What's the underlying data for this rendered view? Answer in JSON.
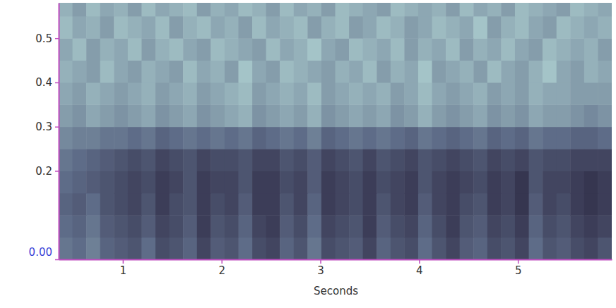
{
  "chart_data": {
    "type": "heatmap",
    "x_label": "Seconds",
    "xlim": [
      0.35,
      5.95
    ],
    "xticks": [
      1,
      2,
      3,
      4,
      5
    ],
    "ylim": [
      0,
      0.58
    ],
    "yticks": [
      {
        "value": 0,
        "label": "0.00"
      },
      0.2,
      0.3,
      0.4,
      0.5
    ],
    "grid": false,
    "cells": {
      "x_edges": [
        0.35,
        0.49,
        0.63,
        0.77,
        0.91,
        1.05,
        1.19,
        1.33,
        1.47,
        1.61,
        1.75,
        1.89,
        2.03,
        2.17,
        2.31,
        2.45,
        2.59,
        2.73,
        2.87,
        3.01,
        3.15,
        3.29,
        3.43,
        3.57,
        3.71,
        3.85,
        3.99,
        4.13,
        4.27,
        4.41,
        4.55,
        4.69,
        4.83,
        4.97,
        5.11,
        5.25,
        5.39,
        5.53,
        5.67,
        5.81,
        5.95
      ],
      "y_edges": [
        0,
        0.05,
        0.1,
        0.15,
        0.2,
        0.25,
        0.3,
        0.35,
        0.4,
        0.45,
        0.5,
        0.55,
        0.6
      ],
      "zlim": [
        0,
        1
      ],
      "values": [
        [
          0.5,
          0.45,
          0.55,
          0.4,
          0.35,
          0.3,
          0.45,
          0.25,
          0.3,
          0.4,
          0.2,
          0.35,
          0.3,
          0.45,
          0.25,
          0.2,
          0.4,
          0.3,
          0.5,
          0.25,
          0.3,
          0.35,
          0.2,
          0.4,
          0.3,
          0.25,
          0.45,
          0.3,
          0.2,
          0.35,
          0.4,
          0.25,
          0.3,
          0.2,
          0.45,
          0.3,
          0.35,
          0.25,
          0.2,
          0.3
        ],
        [
          0.45,
          0.4,
          0.5,
          0.35,
          0.3,
          0.25,
          0.35,
          0.2,
          0.25,
          0.35,
          0.15,
          0.3,
          0.25,
          0.4,
          0.2,
          0.15,
          0.35,
          0.25,
          0.45,
          0.2,
          0.25,
          0.3,
          0.15,
          0.35,
          0.25,
          0.2,
          0.4,
          0.25,
          0.15,
          0.3,
          0.35,
          0.2,
          0.25,
          0.15,
          0.4,
          0.25,
          0.3,
          0.2,
          0.15,
          0.2
        ],
        [
          0.4,
          0.35,
          0.45,
          0.3,
          0.25,
          0.2,
          0.3,
          0.15,
          0.25,
          0.3,
          0.15,
          0.25,
          0.2,
          0.35,
          0.15,
          0.15,
          0.3,
          0.2,
          0.4,
          0.15,
          0.2,
          0.25,
          0.15,
          0.3,
          0.2,
          0.15,
          0.35,
          0.2,
          0.15,
          0.25,
          0.3,
          0.15,
          0.2,
          0.1,
          0.35,
          0.2,
          0.25,
          0.15,
          0.1,
          0.15
        ],
        [
          0.45,
          0.4,
          0.35,
          0.3,
          0.25,
          0.2,
          0.25,
          0.15,
          0.2,
          0.3,
          0.15,
          0.2,
          0.2,
          0.3,
          0.15,
          0.15,
          0.25,
          0.2,
          0.35,
          0.15,
          0.2,
          0.25,
          0.15,
          0.25,
          0.2,
          0.15,
          0.3,
          0.2,
          0.15,
          0.2,
          0.25,
          0.15,
          0.2,
          0.1,
          0.3,
          0.2,
          0.2,
          0.15,
          0.1,
          0.15
        ],
        [
          0.5,
          0.45,
          0.4,
          0.35,
          0.3,
          0.25,
          0.3,
          0.2,
          0.25,
          0.3,
          0.2,
          0.25,
          0.25,
          0.3,
          0.2,
          0.2,
          0.3,
          0.25,
          0.35,
          0.2,
          0.25,
          0.3,
          0.2,
          0.3,
          0.25,
          0.2,
          0.3,
          0.25,
          0.2,
          0.25,
          0.3,
          0.2,
          0.25,
          0.2,
          0.3,
          0.25,
          0.25,
          0.2,
          0.2,
          0.2
        ],
        [
          0.6,
          0.55,
          0.55,
          0.5,
          0.5,
          0.45,
          0.5,
          0.4,
          0.45,
          0.5,
          0.45,
          0.5,
          0.45,
          0.5,
          0.4,
          0.45,
          0.5,
          0.45,
          0.55,
          0.4,
          0.45,
          0.5,
          0.45,
          0.5,
          0.45,
          0.4,
          0.5,
          0.45,
          0.4,
          0.45,
          0.5,
          0.4,
          0.45,
          0.4,
          0.5,
          0.45,
          0.45,
          0.4,
          0.4,
          0.45
        ],
        [
          0.7,
          0.65,
          0.75,
          0.7,
          0.65,
          0.7,
          0.75,
          0.65,
          0.7,
          0.75,
          0.65,
          0.7,
          0.75,
          0.8,
          0.65,
          0.7,
          0.75,
          0.7,
          0.8,
          0.65,
          0.7,
          0.75,
          0.7,
          0.75,
          0.65,
          0.7,
          0.8,
          0.7,
          0.65,
          0.7,
          0.75,
          0.65,
          0.7,
          0.65,
          0.75,
          0.7,
          0.7,
          0.65,
          0.6,
          0.65
        ],
        [
          0.75,
          0.7,
          0.8,
          0.75,
          0.7,
          0.75,
          0.8,
          0.7,
          0.75,
          0.8,
          0.7,
          0.75,
          0.8,
          0.85,
          0.7,
          0.75,
          0.8,
          0.75,
          0.85,
          0.7,
          0.75,
          0.8,
          0.75,
          0.8,
          0.7,
          0.75,
          0.85,
          0.75,
          0.7,
          0.75,
          0.8,
          0.7,
          0.75,
          0.7,
          0.8,
          0.75,
          0.75,
          0.7,
          0.7,
          0.7
        ],
        [
          0.8,
          0.75,
          0.7,
          0.85,
          0.75,
          0.7,
          0.8,
          0.75,
          0.7,
          0.85,
          0.75,
          0.8,
          0.7,
          0.9,
          0.75,
          0.7,
          0.85,
          0.8,
          0.75,
          0.7,
          0.8,
          0.75,
          0.85,
          0.7,
          0.8,
          0.75,
          0.9,
          0.7,
          0.75,
          0.8,
          0.7,
          0.85,
          0.75,
          0.7,
          0.8,
          0.9,
          0.75,
          0.7,
          0.8,
          0.75
        ],
        [
          0.75,
          0.85,
          0.7,
          0.8,
          0.75,
          0.85,
          0.7,
          0.8,
          0.85,
          0.75,
          0.7,
          0.85,
          0.8,
          0.75,
          0.7,
          0.85,
          0.75,
          0.8,
          0.9,
          0.75,
          0.7,
          0.85,
          0.8,
          0.75,
          0.85,
          0.7,
          0.8,
          0.75,
          0.85,
          0.7,
          0.8,
          0.75,
          0.85,
          0.75,
          0.7,
          0.85,
          0.8,
          0.75,
          0.8,
          0.7
        ],
        [
          0.85,
          0.75,
          0.8,
          0.7,
          0.85,
          0.8,
          0.75,
          0.85,
          0.7,
          0.8,
          0.85,
          0.75,
          0.8,
          0.7,
          0.85,
          0.75,
          0.8,
          0.85,
          0.7,
          0.8,
          0.85,
          0.7,
          0.75,
          0.85,
          0.8,
          0.7,
          0.75,
          0.85,
          0.8,
          0.75,
          0.9,
          0.7,
          0.8,
          0.85,
          0.75,
          0.7,
          0.85,
          0.8,
          0.75,
          0.8
        ],
        [
          0.8,
          0.7,
          0.85,
          0.75,
          0.8,
          0.7,
          0.85,
          0.75,
          0.8,
          0.85,
          0.7,
          0.8,
          0.75,
          0.85,
          0.8,
          0.7,
          0.85,
          0.75,
          0.8,
          0.7,
          0.85,
          0.8,
          0.75,
          0.7,
          0.85,
          0.8,
          0.75,
          0.8,
          0.7,
          0.85,
          0.75,
          0.8,
          0.7,
          0.85,
          0.8,
          0.75,
          0.7,
          0.85,
          0.8,
          0.75
        ]
      ]
    }
  }
}
